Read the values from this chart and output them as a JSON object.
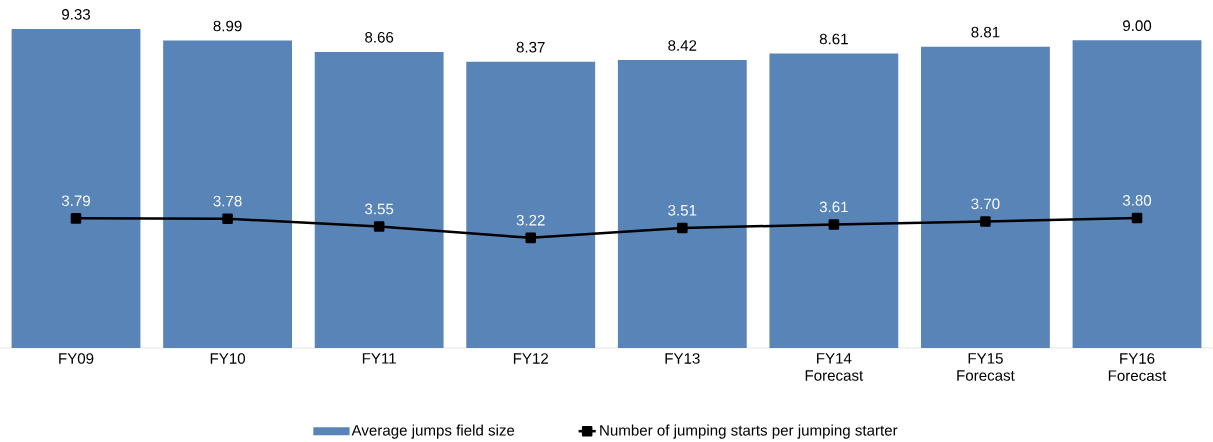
{
  "chart_data": {
    "type": "bar",
    "categories": [
      "FY09",
      "FY10",
      "FY11",
      "FY12",
      "FY13",
      "FY14 Forecast",
      "FY15 Forecast",
      "FY16 Forecast"
    ],
    "series": [
      {
        "name": "Average jumps field size",
        "color": "#5884b8",
        "values": [
          9.33,
          8.99,
          8.66,
          8.37,
          8.42,
          8.61,
          8.81,
          9.0
        ],
        "value_labels": [
          "9.33",
          "8.99",
          "8.66",
          "8.37",
          "8.42",
          "8.61",
          "8.81",
          "9.00"
        ]
      },
      {
        "name": "Number of jumping starts per jumping starter",
        "type": "line",
        "color": "#000000",
        "marker": "square",
        "line_style": "solid",
        "values": [
          3.79,
          3.78,
          3.55,
          3.22,
          3.51,
          3.61,
          3.7,
          3.8
        ],
        "value_labels": [
          "3.79",
          "3.78",
          "3.55",
          "3.22",
          "3.51",
          "3.61",
          "3.70",
          "3.80"
        ]
      }
    ],
    "legend": "bottom",
    "tick_labels": "x"
  }
}
